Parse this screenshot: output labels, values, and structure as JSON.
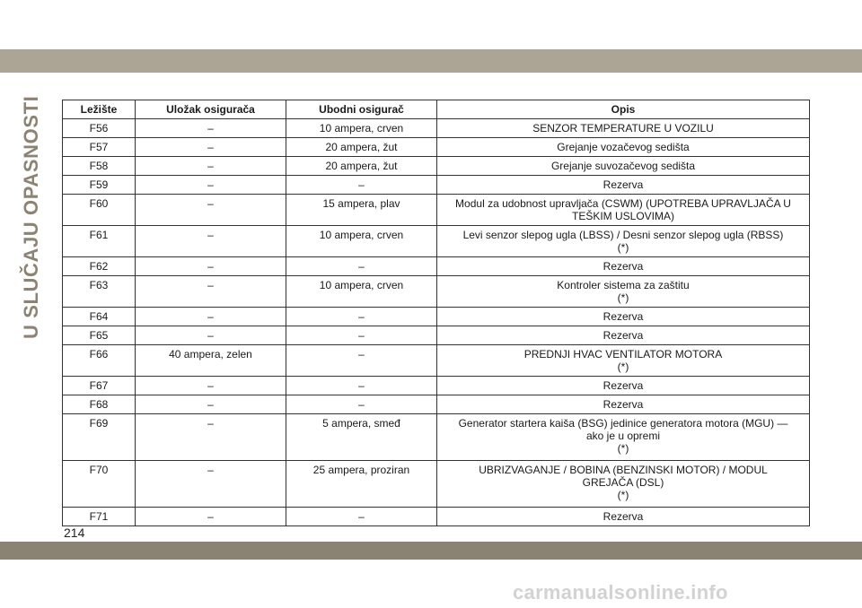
{
  "side_title": "U SLUČAJU OPASNOSTI",
  "page_number": "214",
  "watermark": "carmanualsonline.info",
  "table": {
    "headers": [
      "Ležište",
      "Uložak osigurača",
      "Ubodni osigurač",
      "Opis"
    ],
    "rows": [
      [
        "F56",
        "–",
        "10 ampera, crven",
        "SENZOR TEMPERATURE U VOZILU"
      ],
      [
        "F57",
        "–",
        "20 ampera, žut",
        "Grejanje vozačevog sedišta"
      ],
      [
        "F58",
        "–",
        "20 ampera, žut",
        "Grejanje suvozačevog sedišta"
      ],
      [
        "F59",
        "–",
        "–",
        "Rezerva"
      ],
      [
        "F60",
        "–",
        "15 ampera, plav",
        "Modul za udobnost upravljača (CSWM) (UPOTREBA UPRAVLJAČA U\nTEŠKIM USLOVIMA)"
      ],
      [
        "F61",
        "–",
        "10 ampera, crven",
        "Levi senzor slepog ugla (LBSS) / Desni senzor slepog ugla (RBSS)\n(*)"
      ],
      [
        "F62",
        "–",
        "–",
        "Rezerva"
      ],
      [
        "F63",
        "–",
        "10 ampera, crven",
        "Kontroler sistema za zaštitu\n(*)"
      ],
      [
        "F64",
        "–",
        "–",
        "Rezerva"
      ],
      [
        "F65",
        "–",
        "–",
        "Rezerva"
      ],
      [
        "F66",
        "40 ampera, zelen",
        "–",
        "PREDNJI HVAC VENTILATOR MOTORA\n(*)"
      ],
      [
        "F67",
        "–",
        "–",
        "Rezerva"
      ],
      [
        "F68",
        "–",
        "–",
        "Rezerva"
      ],
      [
        "F69",
        "–",
        "5 ampera, smeđ",
        "Generator startera kaiša (BSG) jedinice generatora motora (MGU) —\nako je u opremi\n(*)"
      ],
      [
        "F70",
        "–",
        "25 ampera, proziran",
        "UBRIZVAGANJE / BOBINA (BENZINSKI MOTOR) / MODUL\nGREJAČA (DSL)\n(*)"
      ],
      [
        "F71",
        "–",
        "–",
        "Rezerva"
      ]
    ]
  }
}
